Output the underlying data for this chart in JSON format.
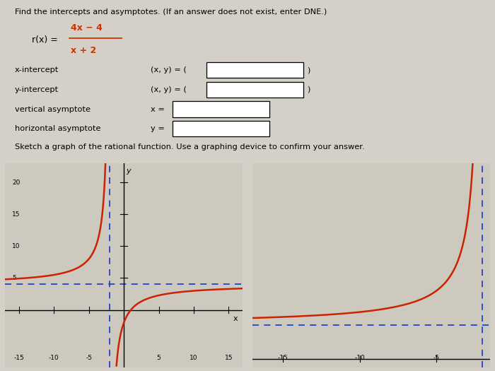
{
  "bg_color": "#d4d0c8",
  "title_text": "Find the intercepts and asymptotes. (If an answer does not exist, enter DNE.)",
  "formula_label": "r(x) =",
  "formula_numerator": "4x − 4",
  "formula_denominator": "x + 2",
  "formula_color": "#cc3300",
  "field_rows": [
    {
      "label": "x-intercept",
      "prefix": "(x, y) = (",
      "suffix": ")"
    },
    {
      "label": "y-intercept",
      "prefix": "(x, y) = (",
      "suffix": ")"
    },
    {
      "label": "vertical asymptote",
      "prefix": "x = ",
      "suffix": ""
    },
    {
      "label": "horizontal asymptote",
      "prefix": "y = ",
      "suffix": ""
    }
  ],
  "sketch_label": "Sketch a graph of the rational function. Use a graphing device to confirm your answer.",
  "left_graph": {
    "xlim": [
      -17,
      17
    ],
    "ylim": [
      -9,
      23
    ],
    "xticks": [
      -15,
      -10,
      -5,
      5,
      10,
      15
    ],
    "yticks": [
      5,
      10,
      15,
      20
    ],
    "xlabel": "x",
    "ylabel": "y",
    "vert_asymptote": -2,
    "horiz_asymptote": 4,
    "curve_color": "#cc2200",
    "asymptote_color": "#2244cc",
    "bg_color": "#cdc9bf"
  },
  "right_graph": {
    "xlim": [
      -17,
      -1.5
    ],
    "ylim": [
      -1,
      23
    ],
    "xticks": [
      -15,
      -10,
      -5
    ],
    "yticks": [],
    "vert_asymptote": -2,
    "horiz_asymptote": 4,
    "curve_color": "#cc2200",
    "asymptote_color": "#2244cc",
    "bg_color": "#cdc9bf"
  }
}
